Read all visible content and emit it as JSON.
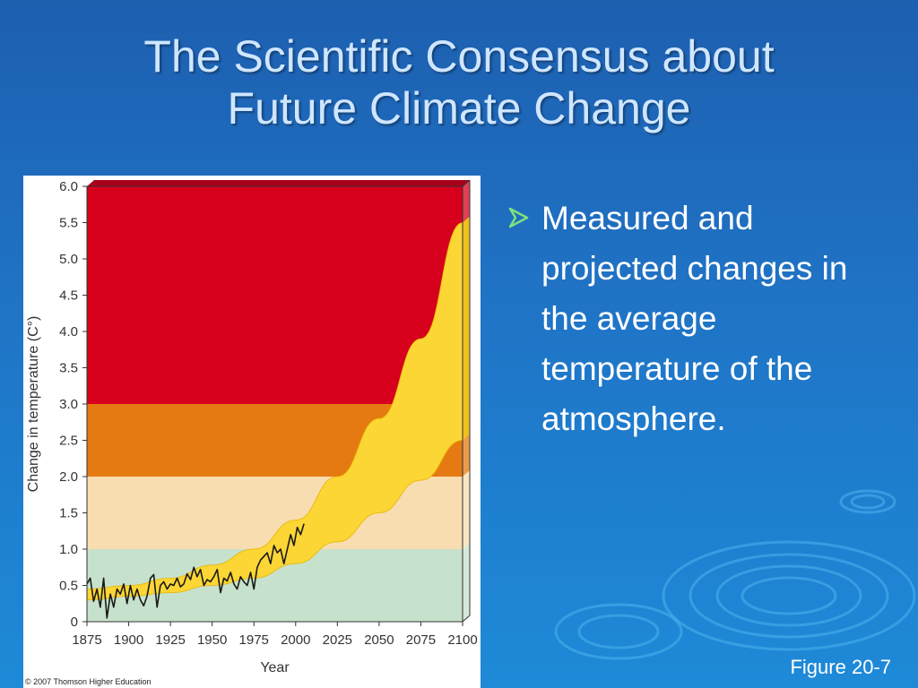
{
  "slide": {
    "title_line1": "The Scientific Consensus about",
    "title_line2": "Future Climate Change",
    "bullet": "Measured and projected changes in the average temperature of the atmosphere.",
    "bullet_icon": "arrow-bullet-icon",
    "figure_caption": "Figure 20-7",
    "colors": {
      "background": "#1f74c6",
      "title": "#cfe6ff",
      "bullet": "#ffffff"
    }
  },
  "chart_data": {
    "type": "area",
    "xlabel": "Year",
    "ylabel": "Change in temperature (C°)",
    "credit": "© 2007 Thomson Higher Education",
    "xlim": [
      1875,
      2100
    ],
    "ylim": [
      0,
      6
    ],
    "x_ticks": [
      "1875",
      "1900",
      "1925",
      "1950",
      "1975",
      "2000",
      "2025",
      "2050",
      "2075",
      "2100"
    ],
    "y_ticks": [
      "0",
      "0.5",
      "1.0",
      "1.5",
      "2.0",
      "2.5",
      "3.0",
      "3.5",
      "4.0",
      "4.5",
      "5.0",
      "5.5",
      "6.0"
    ],
    "bands": [
      {
        "from": 0,
        "to": 1,
        "color": "#c7e2cc"
      },
      {
        "from": 1,
        "to": 2,
        "color": "#f8ddb0"
      },
      {
        "from": 2,
        "to": 3,
        "color": "#e67a12"
      },
      {
        "from": 3,
        "to": 6,
        "color": "#d6001c"
      }
    ],
    "projection_band": {
      "color": "#fbd635",
      "x": [
        1875,
        1900,
        1925,
        1950,
        1975,
        2000,
        2025,
        2050,
        2075,
        2100
      ],
      "upper": [
        0.45,
        0.5,
        0.6,
        0.78,
        1.0,
        1.4,
        2.0,
        2.8,
        3.9,
        5.5
      ],
      "lower": [
        0.3,
        0.35,
        0.4,
        0.5,
        0.6,
        0.8,
        1.1,
        1.5,
        1.95,
        2.5
      ]
    },
    "measured_series": {
      "color": "#1a1a1a",
      "x": [
        1875,
        1877,
        1879,
        1881,
        1883,
        1885,
        1887,
        1889,
        1891,
        1893,
        1895,
        1897,
        1899,
        1901,
        1903,
        1905,
        1907,
        1909,
        1911,
        1913,
        1915,
        1917,
        1919,
        1921,
        1923,
        1925,
        1927,
        1929,
        1931,
        1933,
        1935,
        1937,
        1939,
        1941,
        1943,
        1945,
        1947,
        1949,
        1951,
        1953,
        1955,
        1957,
        1959,
        1961,
        1963,
        1965,
        1967,
        1969,
        1971,
        1973,
        1975,
        1977,
        1979,
        1981,
        1983,
        1985,
        1987,
        1989,
        1991,
        1993,
        1995,
        1997,
        1999,
        2001,
        2003,
        2005
      ],
      "values": [
        0.52,
        0.6,
        0.28,
        0.45,
        0.2,
        0.6,
        0.05,
        0.38,
        0.2,
        0.45,
        0.38,
        0.52,
        0.25,
        0.5,
        0.3,
        0.45,
        0.3,
        0.22,
        0.35,
        0.6,
        0.65,
        0.2,
        0.5,
        0.55,
        0.45,
        0.52,
        0.5,
        0.6,
        0.48,
        0.52,
        0.66,
        0.58,
        0.75,
        0.62,
        0.72,
        0.5,
        0.58,
        0.55,
        0.62,
        0.72,
        0.4,
        0.6,
        0.56,
        0.68,
        0.52,
        0.45,
        0.62,
        0.55,
        0.5,
        0.68,
        0.45,
        0.75,
        0.85,
        0.9,
        0.95,
        0.8,
        1.05,
        0.95,
        1.0,
        0.8,
        1.0,
        1.2,
        1.05,
        1.3,
        1.2,
        1.35
      ]
    }
  }
}
